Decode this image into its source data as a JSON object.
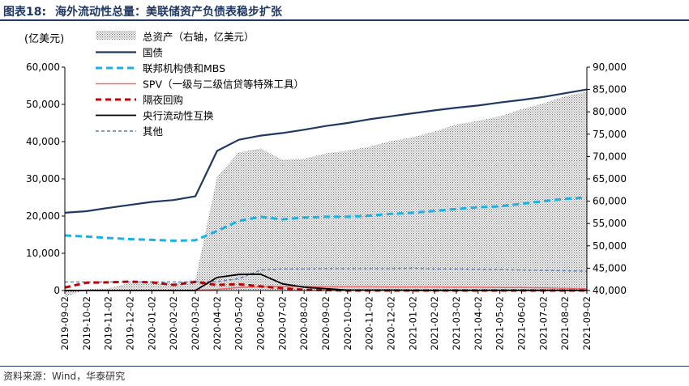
{
  "header": {
    "figure_number": "图表18:",
    "title": "海外流动性总量：美联储资产负债表稳步扩张"
  },
  "footer": {
    "source": "资料来源：Wind，华泰研究"
  },
  "chart_data": {
    "type": "line",
    "left_unit_label": "(亿美元)",
    "x_tick_labels": [
      "2019-09-02",
      "2019-10-02",
      "2019-11-02",
      "2019-12-02",
      "2020-01-02",
      "2020-02-02",
      "2020-03-02",
      "2020-04-02",
      "2020-05-02",
      "2020-06-02",
      "2020-07-02",
      "2020-08-02",
      "2020-09-02",
      "2020-10-02",
      "2020-11-02",
      "2020-12-02",
      "2021-01-02",
      "2021-02-02",
      "2021-03-02",
      "2021-04-02",
      "2021-05-02",
      "2021-06-02",
      "2021-07-02",
      "2021-08-02",
      "2021-09-02"
    ],
    "y_left": {
      "min": 0,
      "max": 60000,
      "ticks": [
        0,
        10000,
        20000,
        30000,
        40000,
        50000,
        60000
      ],
      "tick_labels": [
        "0",
        "10,000",
        "20,000",
        "30,000",
        "40,000",
        "50,000",
        "60,000"
      ]
    },
    "y_right": {
      "min": 40000,
      "max": 90000,
      "ticks": [
        40000,
        45000,
        50000,
        55000,
        60000,
        65000,
        70000,
        75000,
        80000,
        85000,
        90000
      ],
      "tick_labels": [
        "40,000",
        "45,000",
        "50,000",
        "55,000",
        "60,000",
        "65,000",
        "70,000",
        "75,000",
        "80,000",
        "85,000",
        "90,000"
      ]
    },
    "legend": [
      {
        "key": "total_assets",
        "label": "总资产（右轴，亿美元）"
      },
      {
        "key": "treasuries",
        "label": "国债"
      },
      {
        "key": "agency_mbs",
        "label": "联邦机构债和MBS"
      },
      {
        "key": "spv",
        "label": "SPV（一级与二级信贷等特殊工具）"
      },
      {
        "key": "repo",
        "label": "隔夜回购"
      },
      {
        "key": "swaps",
        "label": "央行流动性互换"
      },
      {
        "key": "other",
        "label": "其他"
      }
    ],
    "colors": {
      "total_assets": "#9a9a9a",
      "treasuries": "#1f3864",
      "agency_mbs": "#1ab0e8",
      "spv": "#f46a6a",
      "repo": "#c00000",
      "swaps": "#000000",
      "other": "#5b7fb5"
    },
    "series": [
      {
        "key": "total_assets",
        "name": "总资产（右轴，亿美元）",
        "axis": "right",
        "kind": "area",
        "values": [
          38500,
          40300,
          40500,
          41700,
          41700,
          41600,
          42400,
          65500,
          70900,
          71800,
          69300,
          69500,
          70700,
          71300,
          72200,
          73500,
          74300,
          75600,
          77200,
          78000,
          79000,
          80600,
          81900,
          83500,
          84500
        ]
      },
      {
        "key": "treasuries",
        "name": "国债",
        "axis": "left",
        "kind": "line",
        "values": [
          20900,
          21300,
          22200,
          23000,
          23800,
          24300,
          25300,
          37500,
          40500,
          41600,
          42300,
          43200,
          44200,
          45000,
          46000,
          46800,
          47600,
          48400,
          49100,
          49700,
          50500,
          51200,
          52000,
          53000,
          54000
        ]
      },
      {
        "key": "agency_mbs",
        "name": "联邦机构债和MBS",
        "axis": "left",
        "kind": "line",
        "values": [
          14800,
          14500,
          14100,
          13800,
          13600,
          13400,
          13500,
          16000,
          18700,
          19800,
          19100,
          19600,
          19800,
          19800,
          20100,
          20600,
          20900,
          21400,
          21900,
          22400,
          22600,
          23300,
          24000,
          24600,
          25000
        ]
      },
      {
        "key": "spv",
        "name": "SPV（一级与二级信贷等特殊工具）",
        "axis": "left",
        "kind": "line",
        "values": [
          0,
          0,
          0,
          0,
          0,
          0,
          0,
          300,
          800,
          1000,
          1100,
          1100,
          1000,
          1000,
          1000,
          950,
          950,
          950,
          900,
          900,
          800,
          800,
          700,
          600,
          500
        ]
      },
      {
        "key": "repo",
        "name": "隔夜回购",
        "axis": "left",
        "kind": "line",
        "values": [
          800,
          2100,
          2200,
          2400,
          2200,
          1500,
          2300,
          1500,
          1700,
          1100,
          600,
          200,
          100,
          0,
          0,
          0,
          0,
          0,
          0,
          0,
          0,
          0,
          0,
          0,
          0
        ]
      },
      {
        "key": "swaps",
        "name": "央行流动性互换",
        "axis": "left",
        "kind": "line",
        "values": [
          0,
          0,
          0,
          0,
          0,
          0,
          0,
          3500,
          4300,
          4400,
          1800,
          900,
          500,
          100,
          100,
          100,
          50,
          50,
          50,
          50,
          50,
          50,
          50,
          50,
          50
        ]
      },
      {
        "key": "other",
        "name": "其他",
        "axis": "left",
        "kind": "line",
        "values": [
          2300,
          2300,
          2300,
          2300,
          2300,
          2300,
          2300,
          2400,
          3200,
          5500,
          5800,
          5800,
          5900,
          5900,
          5900,
          5900,
          6000,
          5800,
          5800,
          5700,
          5600,
          5500,
          5400,
          5300,
          5200
        ]
      }
    ]
  }
}
